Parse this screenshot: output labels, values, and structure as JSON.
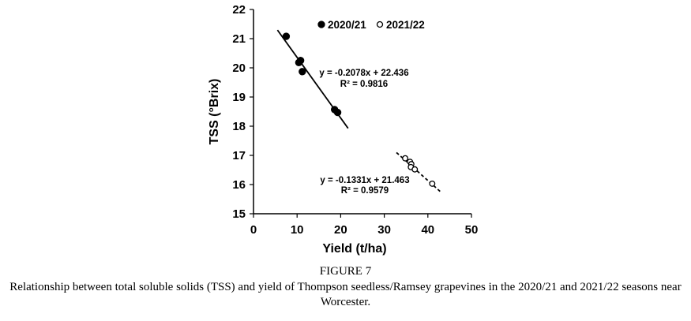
{
  "figure_label": "FIGURE 7",
  "caption": "Relationship between total soluble solids (TSS) and yield of Thompson seedless/Ramsey grapevines in the 2020/21 and 2021/22 seasons near Worcester.",
  "chart_data": {
    "type": "scatter",
    "title": "",
    "xlabel": "Yield (t/ha)",
    "ylabel": "TSS (°Brix)",
    "xlim": [
      0,
      50
    ],
    "ylim": [
      15,
      22
    ],
    "xticks": [
      "0",
      "10",
      "20",
      "30",
      "40",
      "50"
    ],
    "yticks": [
      "15",
      "16",
      "17",
      "18",
      "19",
      "20",
      "21",
      "22"
    ],
    "grid": false,
    "legend_position": "top",
    "series": [
      {
        "name": "2020/21",
        "marker": "filled-circle",
        "color": "#000000",
        "points": [
          [
            7.5,
            21.08
          ],
          [
            10.4,
            20.18
          ],
          [
            10.8,
            20.25
          ],
          [
            11.2,
            19.87
          ],
          [
            18.6,
            18.57
          ],
          [
            19.3,
            18.47
          ]
        ],
        "trendline": {
          "style": "solid",
          "slope": -0.2078,
          "intercept": 22.436,
          "x_range": [
            5.5,
            21.7
          ]
        },
        "equation": "y = -0.2078x + 22.436",
        "r2": "R² = 0.9816"
      },
      {
        "name": "2021/22",
        "marker": "open-circle",
        "color": "#000000",
        "points": [
          [
            34.8,
            16.9
          ],
          [
            35.9,
            16.78
          ],
          [
            36.2,
            16.7
          ],
          [
            36.1,
            16.6
          ],
          [
            37.0,
            16.52
          ],
          [
            41.0,
            16.03
          ]
        ],
        "trendline": {
          "style": "dashed",
          "slope": -0.1331,
          "intercept": 21.463,
          "x_range": [
            32.8,
            43.2
          ]
        },
        "equation": "y = -0.1331x + 21.463",
        "r2": "R² = 0.9579"
      }
    ]
  }
}
